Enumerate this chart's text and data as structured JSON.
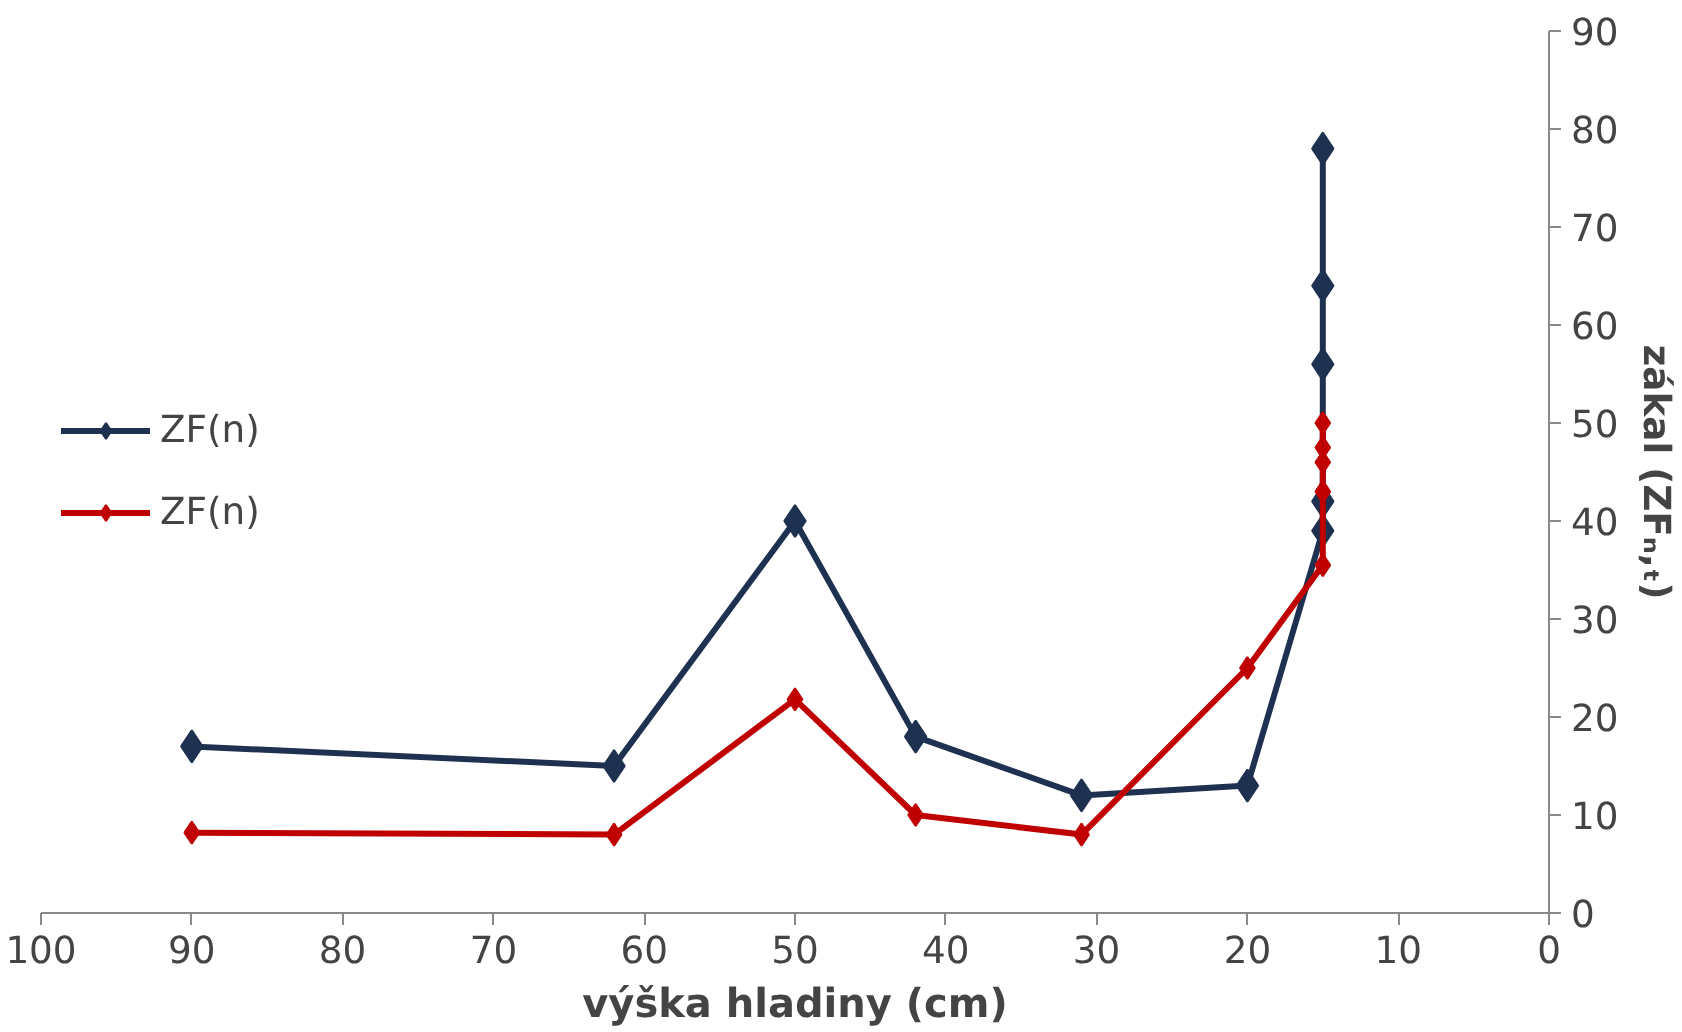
{
  "chart_data": {
    "type": "line",
    "xlabel": "výška hladiny (cm)",
    "y2label": "zákal (ZFₙ,ₜ)",
    "xlim": [
      100,
      0
    ],
    "xticks": [
      100,
      90,
      80,
      70,
      60,
      50,
      40,
      30,
      20,
      10,
      0
    ],
    "y2lim": [
      0,
      90
    ],
    "y2ticks": [
      0,
      10,
      20,
      30,
      40,
      50,
      60,
      70,
      80,
      90
    ],
    "grid": false,
    "legend": "left",
    "marker": "diamond",
    "line_style": "solid",
    "series": [
      {
        "name": "ZF(n)",
        "color": "#1f3150",
        "axis": "y2",
        "x": [
          90,
          62,
          50,
          42,
          31,
          20,
          15,
          15,
          15,
          15,
          15
        ],
        "values": [
          17,
          15,
          40,
          18,
          12,
          13,
          39,
          42,
          56,
          64,
          78
        ]
      },
      {
        "name": "ZF(n)",
        "color": "#c00000",
        "axis": "y2",
        "x": [
          90,
          62,
          50,
          42,
          31,
          20,
          15,
          15,
          15,
          15,
          15
        ],
        "values": [
          8.2,
          8,
          21.8,
          10,
          8,
          25,
          35.5,
          43,
          46,
          47.5,
          50
        ]
      }
    ]
  }
}
